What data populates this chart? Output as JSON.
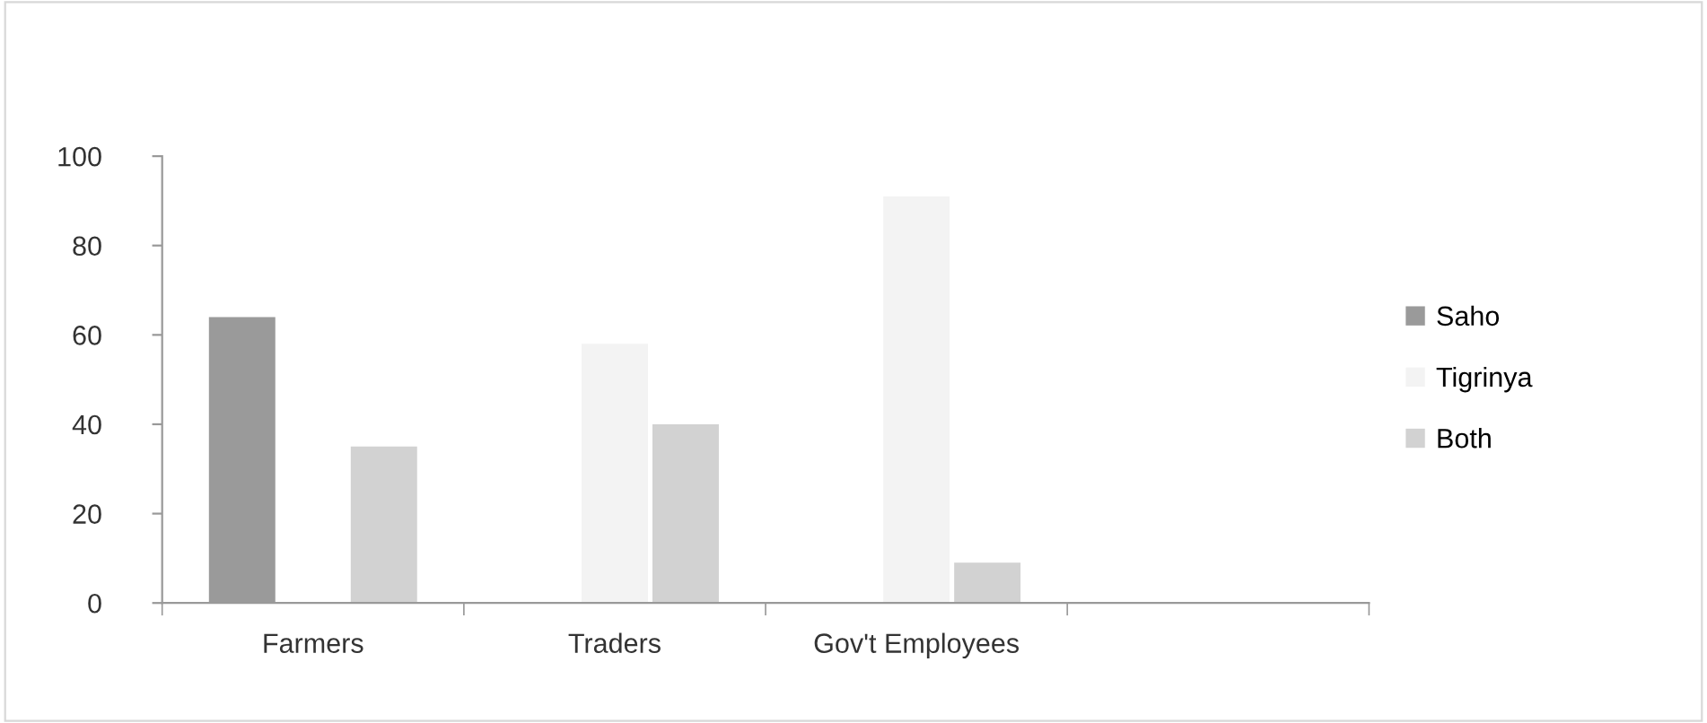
{
  "chart_data": {
    "type": "bar",
    "categories": [
      "Farmers",
      "Traders",
      "Gov't Employees",
      null
    ],
    "series": [
      {
        "name": "Saho",
        "color": "#9a9a9a",
        "values": [
          64,
          null,
          null,
          null
        ]
      },
      {
        "name": "Tigrinya",
        "color": "#f3f3f3",
        "values": [
          null,
          58,
          91,
          null
        ]
      },
      {
        "name": "Both",
        "color": "#d2d2d2",
        "values": [
          35,
          40,
          9,
          null
        ]
      }
    ],
    "ylim": [
      0,
      100
    ],
    "yticks": [
      0,
      20,
      40,
      60,
      80,
      100
    ],
    "grid": false,
    "legend": "right"
  }
}
